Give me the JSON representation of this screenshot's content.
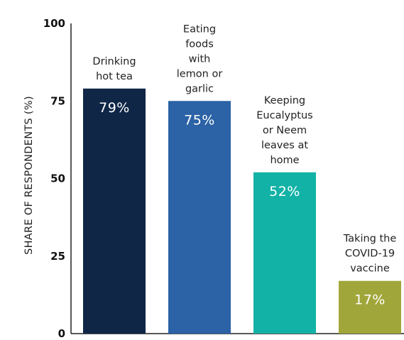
{
  "chart_data": {
    "type": "bar",
    "ylabel": "SHARE OF RESPONDENTS (%)",
    "ylim": [
      0,
      100
    ],
    "yticks": [
      0,
      25,
      50,
      75,
      100
    ],
    "grid": false,
    "categories": [
      [
        "Drinking",
        "hot tea"
      ],
      [
        "Eating",
        "foods",
        "with",
        "lemon or",
        "garlic"
      ],
      [
        "Keeping",
        "Eucalyptus",
        "or Neem",
        "leaves at",
        "home"
      ],
      [
        "Taking the",
        "COVID-19",
        "vaccine"
      ]
    ],
    "values": [
      79,
      75,
      52,
      17
    ],
    "value_labels": [
      "79%",
      "75%",
      "52%",
      "17%"
    ],
    "colors": [
      "#0f2647",
      "#2c62a6",
      "#12b2a6",
      "#a1a63a"
    ]
  }
}
